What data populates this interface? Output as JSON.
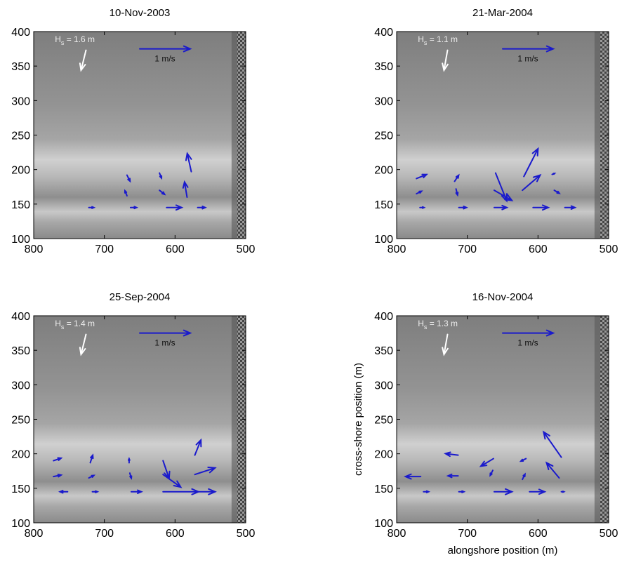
{
  "chart_data": [
    {
      "type": "quiver",
      "title": "10-Nov-2003",
      "xlim": [
        800,
        500
      ],
      "ylim": [
        100,
        400
      ],
      "xticks": [
        800,
        700,
        600,
        500
      ],
      "yticks": [
        100,
        150,
        200,
        250,
        300,
        350,
        400
      ],
      "wave_height": {
        "symbol": "H",
        "subscript": "s",
        "text": " = 1.6 m",
        "x": 770,
        "y": 385
      },
      "wave_arrow": {
        "x1": 726,
        "y1": 373,
        "x2": 733,
        "y2": 344
      },
      "reference": {
        "label": "1 m/s",
        "x": 650,
        "y": 375,
        "u": 1,
        "v": 0
      },
      "color": "#1a1acc",
      "vectors": [
        {
          "x": 722,
          "y": 145,
          "u": 0.1,
          "v": 0
        },
        {
          "x": 663,
          "y": 145,
          "u": 0.12,
          "v": 0
        },
        {
          "x": 612,
          "y": 145,
          "u": 0.3,
          "v": 0
        },
        {
          "x": 568,
          "y": 145,
          "u": 0.15,
          "v": 0
        },
        {
          "x": 668,
          "y": 192,
          "u": 0.06,
          "v": -0.12
        },
        {
          "x": 668,
          "y": 162,
          "u": -0.04,
          "v": 0.1
        },
        {
          "x": 622,
          "y": 195,
          "u": 0.04,
          "v": -0.1
        },
        {
          "x": 622,
          "y": 170,
          "u": 0.1,
          "v": -0.08
        },
        {
          "x": 577,
          "y": 197,
          "u": -0.08,
          "v": 0.36
        },
        {
          "x": 583,
          "y": 160,
          "u": -0.05,
          "v": 0.3
        }
      ]
    },
    {
      "type": "quiver",
      "title": "21-Mar-2004",
      "xlim": [
        800,
        500
      ],
      "ylim": [
        100,
        400
      ],
      "xticks": [
        800,
        700,
        600,
        500
      ],
      "yticks": [
        100,
        150,
        200,
        250,
        300,
        350,
        400
      ],
      "wave_height": {
        "symbol": "H",
        "subscript": "s",
        "text": " = 1.1 m",
        "x": 770,
        "y": 385
      },
      "wave_arrow": {
        "x1": 728,
        "y1": 373,
        "x2": 733,
        "y2": 344
      },
      "reference": {
        "label": "1 m/s",
        "x": 650,
        "y": 375,
        "u": 1,
        "v": 0
      },
      "color": "#1a1acc",
      "vectors": [
        {
          "x": 772,
          "y": 187,
          "u": 0.2,
          "v": 0.08
        },
        {
          "x": 772,
          "y": 165,
          "u": 0.1,
          "v": 0.05
        },
        {
          "x": 767,
          "y": 145,
          "u": 0.08,
          "v": 0
        },
        {
          "x": 718,
          "y": 183,
          "u": 0.08,
          "v": 0.12
        },
        {
          "x": 716,
          "y": 172,
          "u": 0.03,
          "v": -0.12
        },
        {
          "x": 712,
          "y": 145,
          "u": 0.15,
          "v": 0
        },
        {
          "x": 660,
          "y": 195,
          "u": 0.22,
          "v": -0.55
        },
        {
          "x": 662,
          "y": 170,
          "u": 0.35,
          "v": -0.2
        },
        {
          "x": 662,
          "y": 145,
          "u": 0.25,
          "v": 0
        },
        {
          "x": 607,
          "y": 145,
          "u": 0.3,
          "v": 0
        },
        {
          "x": 562,
          "y": 145,
          "u": 0.2,
          "v": 0
        },
        {
          "x": 620,
          "y": 190,
          "u": 0.28,
          "v": 0.55
        },
        {
          "x": 622,
          "y": 170,
          "u": 0.35,
          "v": 0.3
        },
        {
          "x": 580,
          "y": 193,
          "u": 0.05,
          "v": 0.02
        },
        {
          "x": 577,
          "y": 170,
          "u": 0.1,
          "v": -0.06
        }
      ]
    },
    {
      "type": "quiver",
      "title": "25-Sep-2004",
      "xlim": [
        800,
        500
      ],
      "ylim": [
        100,
        400
      ],
      "xticks": [
        800,
        700,
        600,
        500
      ],
      "yticks": [
        100,
        150,
        200,
        250,
        300,
        350,
        400
      ],
      "wave_height": {
        "symbol": "H",
        "subscript": "s",
        "text": " = 1.4 m",
        "x": 770,
        "y": 385
      },
      "wave_arrow": {
        "x1": 726,
        "y1": 373,
        "x2": 733,
        "y2": 344
      },
      "reference": {
        "label": "1 m/s",
        "x": 650,
        "y": 375,
        "u": 1,
        "v": 0
      },
      "color": "#1a1acc",
      "vectors": [
        {
          "x": 772,
          "y": 190,
          "u": 0.15,
          "v": 0.05
        },
        {
          "x": 772,
          "y": 167,
          "u": 0.15,
          "v": 0.03
        },
        {
          "x": 752,
          "y": 145,
          "u": -0.15,
          "v": 0
        },
        {
          "x": 720,
          "y": 187,
          "u": 0.05,
          "v": 0.15
        },
        {
          "x": 722,
          "y": 165,
          "u": 0.1,
          "v": 0.05
        },
        {
          "x": 717,
          "y": 145,
          "u": 0.1,
          "v": 0
        },
        {
          "x": 665,
          "y": 187,
          "u": 0,
          "v": 0.08
        },
        {
          "x": 664,
          "y": 172,
          "u": 0.03,
          "v": -0.1
        },
        {
          "x": 662,
          "y": 145,
          "u": 0.2,
          "v": 0
        },
        {
          "x": 617,
          "y": 190,
          "u": 0.12,
          "v": -0.35
        },
        {
          "x": 617,
          "y": 170,
          "u": 0.35,
          "v": -0.25
        },
        {
          "x": 617,
          "y": 145,
          "u": 0.7,
          "v": 0
        },
        {
          "x": 572,
          "y": 198,
          "u": 0.12,
          "v": 0.3
        },
        {
          "x": 572,
          "y": 170,
          "u": 0.4,
          "v": 0.13
        },
        {
          "x": 572,
          "y": 145,
          "u": 0.4,
          "v": 0
        }
      ]
    },
    {
      "type": "quiver",
      "title": "16-Nov-2004",
      "xlim": [
        800,
        500
      ],
      "ylim": [
        100,
        400
      ],
      "xticks": [
        800,
        700,
        600,
        500
      ],
      "yticks": [
        100,
        150,
        200,
        250,
        300,
        350,
        400
      ],
      "xlabel": "alongshore position (m)",
      "ylabel": "cross-shore position (m)",
      "wave_height": {
        "symbol": "H",
        "subscript": "s",
        "text": " = 1.3 m",
        "x": 770,
        "y": 385
      },
      "wave_arrow": {
        "x1": 728,
        "y1": 373,
        "x2": 733,
        "y2": 344
      },
      "reference": {
        "label": "1 m/s",
        "x": 650,
        "y": 375,
        "u": 1,
        "v": 0
      },
      "color": "#1a1acc",
      "vectors": [
        {
          "x": 766,
          "y": 167,
          "u": -0.3,
          "v": 0
        },
        {
          "x": 762,
          "y": 145,
          "u": 0.1,
          "v": 0
        },
        {
          "x": 713,
          "y": 198,
          "u": -0.25,
          "v": 0.03
        },
        {
          "x": 713,
          "y": 168,
          "u": -0.2,
          "v": 0
        },
        {
          "x": 712,
          "y": 145,
          "u": 0.1,
          "v": 0
        },
        {
          "x": 663,
          "y": 193,
          "u": -0.25,
          "v": -0.15
        },
        {
          "x": 664,
          "y": 176,
          "u": -0.05,
          "v": -0.1
        },
        {
          "x": 662,
          "y": 145,
          "u": 0.35,
          "v": 0
        },
        {
          "x": 617,
          "y": 193,
          "u": -0.1,
          "v": -0.05
        },
        {
          "x": 622,
          "y": 163,
          "u": 0.05,
          "v": 0.1
        },
        {
          "x": 612,
          "y": 145,
          "u": 0.3,
          "v": 0
        },
        {
          "x": 567,
          "y": 195,
          "u": -0.35,
          "v": 0.5
        },
        {
          "x": 570,
          "y": 165,
          "u": -0.25,
          "v": 0.3
        },
        {
          "x": 567,
          "y": 145,
          "u": 0.05,
          "v": 0
        }
      ]
    }
  ]
}
